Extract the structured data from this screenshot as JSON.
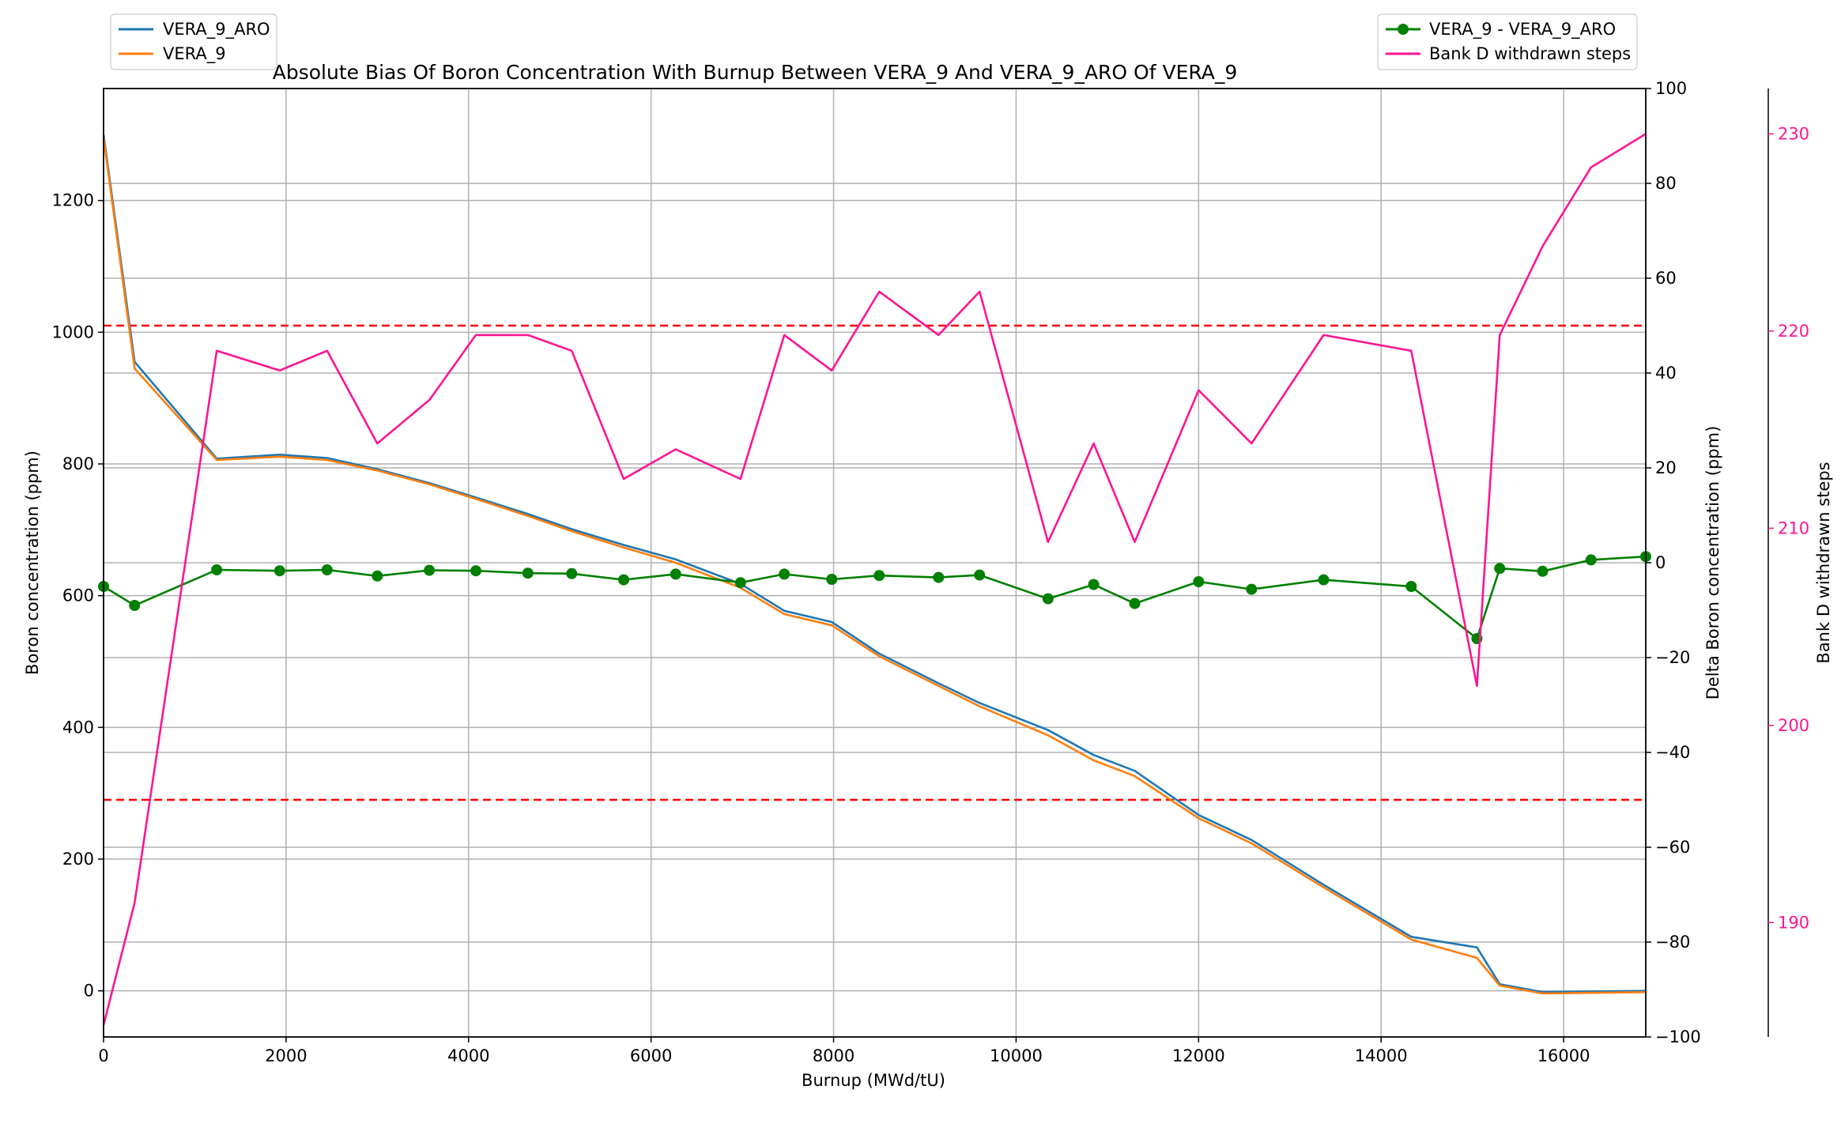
{
  "chart_data": {
    "type": "line",
    "title": "Absolute Bias Of Boron Concentration With Burnup Between VERA_9 And VERA_9_ARO Of VERA_9",
    "xlabel": "Burnup (MWd/tU)",
    "xlim": [
      0,
      16900
    ],
    "xticks": [
      0,
      2000,
      4000,
      6000,
      8000,
      10000,
      12000,
      14000,
      16000
    ],
    "grid": true,
    "axes": {
      "left": {
        "label": "Boron concentration (ppm)",
        "ylim": [
          -70,
          1370
        ],
        "ticks": [
          0,
          200,
          400,
          600,
          800,
          1000,
          1200
        ]
      },
      "right": {
        "label": "Delta Boron concentration (ppm)",
        "ylim": [
          -100,
          100
        ],
        "ticks": [
          -100,
          -80,
          -60,
          -40,
          -20,
          0,
          20,
          40,
          60,
          80,
          100
        ],
        "threshold_lines": [
          50,
          -50
        ],
        "threshold_color": "#ff0000"
      },
      "right2": {
        "label": "Bank D withdrawn steps",
        "ylim": [
          184.2,
          232.3
        ],
        "ticks": [
          190,
          200,
          210,
          220,
          230
        ],
        "color": "#ff1493"
      }
    },
    "series": [
      {
        "name": "VERA_9_ARO",
        "axis": "left",
        "color": "#1f77b4",
        "x": [
          0,
          340,
          1240,
          1930,
          2450,
          3000,
          3570,
          4080,
          4650,
          5130,
          5700,
          6270,
          6980,
          7460,
          7980,
          8500,
          9150,
          9600,
          10350,
          10850,
          11300,
          12000,
          12580,
          13370,
          14330,
          15050,
          15300,
          15770,
          16300,
          16900
        ],
        "values": [
          1300,
          955,
          808,
          814,
          809,
          792,
          771,
          749,
          724,
          701,
          677,
          655,
          618,
          577,
          560,
          512,
          467,
          437,
          396,
          358,
          334,
          267,
          229,
          161,
          82,
          66,
          10,
          -2,
          -1,
          0
        ]
      },
      {
        "name": "VERA_9",
        "axis": "left",
        "color": "#ff7f0e",
        "x": [
          0,
          340,
          1240,
          1930,
          2450,
          3000,
          3570,
          4080,
          4650,
          5130,
          5700,
          6270,
          6980,
          7460,
          7980,
          8500,
          9150,
          9600,
          10350,
          10850,
          11300,
          12000,
          12580,
          13370,
          14330,
          15050,
          15300,
          15770,
          16300,
          16900
        ],
        "values": [
          1295,
          945,
          806,
          811,
          806,
          790,
          769,
          747,
          721,
          698,
          673,
          650,
          612,
          572,
          555,
          508,
          463,
          432,
          388,
          350,
          326,
          262,
          224,
          157,
          78,
          50,
          8,
          -4,
          -3,
          -2
        ]
      },
      {
        "name": "VERA_9 - VERA_9_ARO",
        "axis": "right",
        "color": "#008000",
        "marker": "circle",
        "x": [
          0,
          340,
          1240,
          1930,
          2450,
          3000,
          3570,
          4080,
          4650,
          5130,
          5700,
          6270,
          6980,
          7460,
          7980,
          8500,
          9150,
          9600,
          10350,
          10850,
          11300,
          12000,
          12580,
          13370,
          14330,
          15050,
          15300,
          15770,
          16300,
          16900
        ],
        "values": [
          -5,
          -9,
          -1.5,
          -1.7,
          -1.5,
          -2.8,
          -1.6,
          -1.7,
          -2.2,
          -2.3,
          -3.6,
          -2.4,
          -4.2,
          -2.4,
          -3.5,
          -2.7,
          -3.1,
          -2.6,
          -7.6,
          -4.6,
          -8.6,
          -4,
          -5.6,
          -3.6,
          -5,
          -16,
          -1.2,
          -1.8,
          0.6,
          1.3
        ]
      },
      {
        "name": "Bank D withdrawn steps",
        "axis": "right2",
        "color": "#ff1493",
        "x": [
          0,
          340,
          1240,
          1930,
          2450,
          3000,
          3570,
          4080,
          4650,
          5130,
          5700,
          6270,
          6980,
          7460,
          7980,
          8500,
          9150,
          9600,
          10350,
          10850,
          11300,
          12000,
          12580,
          13370,
          14330,
          15050,
          15300,
          15770,
          16300,
          16900
        ],
        "values": [
          184.8,
          191,
          219,
          218,
          219,
          214.3,
          216.5,
          219.8,
          219.8,
          219,
          212.5,
          214,
          212.5,
          219.8,
          218,
          222,
          219.8,
          222,
          209.3,
          214.3,
          209.3,
          217,
          214.3,
          219.8,
          219,
          202,
          219.8,
          224.3,
          228.3,
          230
        ]
      }
    ],
    "legends": [
      {
        "placement": "top-left",
        "entries": [
          "VERA_9_ARO",
          "VERA_9"
        ]
      },
      {
        "placement": "top-right",
        "entries": [
          "VERA_9 - VERA_9_ARO",
          "Bank D withdrawn steps"
        ]
      }
    ]
  }
}
